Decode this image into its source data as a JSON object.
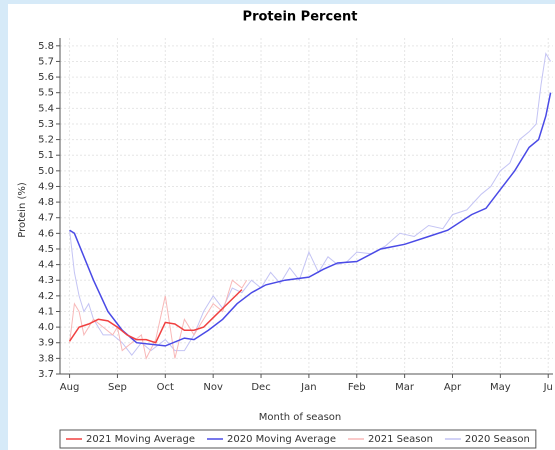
{
  "chart_data": {
    "type": "line",
    "title": "Protein Percent",
    "x_label": "Month of season",
    "y_label": "Protein (%)",
    "xlim": [
      -0.2,
      10.1
    ],
    "ylim": [
      3.7,
      5.85
    ],
    "xticks": [
      {
        "value": 0,
        "label": "Aug"
      },
      {
        "value": 1,
        "label": "Sep"
      },
      {
        "value": 2,
        "label": "Oct"
      },
      {
        "value": 3,
        "label": "Nov"
      },
      {
        "value": 4,
        "label": "Dec"
      },
      {
        "value": 5,
        "label": "Jan"
      },
      {
        "value": 6,
        "label": "Feb"
      },
      {
        "value": 7,
        "label": "Mar"
      },
      {
        "value": 8,
        "label": "Apr"
      },
      {
        "value": 9,
        "label": "May"
      },
      {
        "value": 10,
        "label": "Ju"
      }
    ],
    "yticks": [
      3.7,
      3.8,
      3.9,
      {
        "value": 4,
        "label": "4.0"
      },
      4.1,
      4.2,
      4.3,
      4.4,
      4.5,
      4.6,
      4.7,
      4.8,
      4.9,
      {
        "value": 5,
        "label": "5.0"
      },
      5.1,
      5.2,
      5.3,
      5.4,
      5.5,
      5.6,
      5.7,
      5.8
    ],
    "grid": true,
    "legend": "bottom",
    "series": [
      {
        "name": "2021 Moving Average",
        "color": "#f04040",
        "width": 1.5,
        "x": [
          0,
          0.2,
          0.4,
          0.6,
          0.8,
          1.0,
          1.2,
          1.4,
          1.6,
          1.8,
          2.0,
          2.2,
          2.4,
          2.6,
          2.8,
          3.0,
          3.2,
          3.4,
          3.6
        ],
        "values": [
          3.91,
          4.0,
          4.02,
          4.05,
          4.04,
          4.0,
          3.95,
          3.92,
          3.92,
          3.9,
          4.03,
          4.02,
          3.98,
          3.98,
          4.0,
          4.06,
          4.12,
          4.18,
          4.24
        ]
      },
      {
        "name": "2020 Moving Average",
        "color": "#4a4ae6",
        "width": 1.5,
        "x": [
          0,
          0.1,
          0.5,
          0.8,
          1.1,
          1.4,
          2.0,
          2.4,
          2.6,
          2.9,
          3.2,
          3.5,
          3.8,
          4.1,
          4.5,
          5.0,
          5.3,
          5.6,
          6.0,
          6.5,
          7.0,
          7.5,
          7.9,
          8.4,
          8.7,
          9.0,
          9.3,
          9.6,
          9.8,
          9.95,
          10.05
        ],
        "values": [
          4.62,
          4.6,
          4.3,
          4.1,
          3.98,
          3.9,
          3.88,
          3.93,
          3.92,
          3.98,
          4.05,
          4.15,
          4.22,
          4.27,
          4.3,
          4.32,
          4.37,
          4.41,
          4.42,
          4.5,
          4.53,
          4.58,
          4.62,
          4.72,
          4.76,
          4.88,
          5.0,
          5.15,
          5.2,
          5.35,
          5.5
        ]
      },
      {
        "name": "2021 Season",
        "color": "#f8b8b8",
        "width": 1,
        "x": [
          0,
          0.1,
          0.2,
          0.3,
          0.5,
          0.7,
          0.9,
          1.0,
          1.1,
          1.3,
          1.5,
          1.6,
          1.8,
          2.0,
          2.1,
          2.2,
          2.4,
          2.6,
          2.8,
          3.0,
          3.2,
          3.4,
          3.6,
          3.7
        ],
        "values": [
          3.9,
          4.15,
          4.1,
          3.95,
          4.05,
          4.0,
          3.95,
          4.0,
          3.85,
          3.9,
          3.95,
          3.8,
          3.92,
          4.2,
          4.0,
          3.8,
          4.05,
          3.95,
          4.05,
          4.15,
          4.1,
          4.3,
          4.25,
          4.3
        ]
      },
      {
        "name": "2020 Season",
        "color": "#c4c4f4",
        "width": 1,
        "x": [
          0,
          0.1,
          0.2,
          0.3,
          0.4,
          0.5,
          0.7,
          0.9,
          1.1,
          1.3,
          1.5,
          1.7,
          2.0,
          2.2,
          2.4,
          2.6,
          2.8,
          3.0,
          3.2,
          3.4,
          3.6,
          3.8,
          4.0,
          4.2,
          4.4,
          4.6,
          4.8,
          5.0,
          5.2,
          5.4,
          5.6,
          5.8,
          6.0,
          6.3,
          6.6,
          6.9,
          7.2,
          7.5,
          7.8,
          8.0,
          8.3,
          8.6,
          8.8,
          9.0,
          9.2,
          9.4,
          9.6,
          9.75,
          9.85,
          9.95,
          10.05
        ],
        "values": [
          4.62,
          4.35,
          4.2,
          4.1,
          4.15,
          4.05,
          3.95,
          3.95,
          3.9,
          3.82,
          3.9,
          3.85,
          3.92,
          3.85,
          3.85,
          3.95,
          4.1,
          4.2,
          4.12,
          4.25,
          4.22,
          4.3,
          4.25,
          4.35,
          4.28,
          4.38,
          4.3,
          4.48,
          4.35,
          4.45,
          4.4,
          4.42,
          4.48,
          4.47,
          4.52,
          4.6,
          4.58,
          4.65,
          4.63,
          4.72,
          4.75,
          4.85,
          4.9,
          5.0,
          5.05,
          5.2,
          5.25,
          5.3,
          5.55,
          5.75,
          5.7
        ]
      }
    ]
  }
}
